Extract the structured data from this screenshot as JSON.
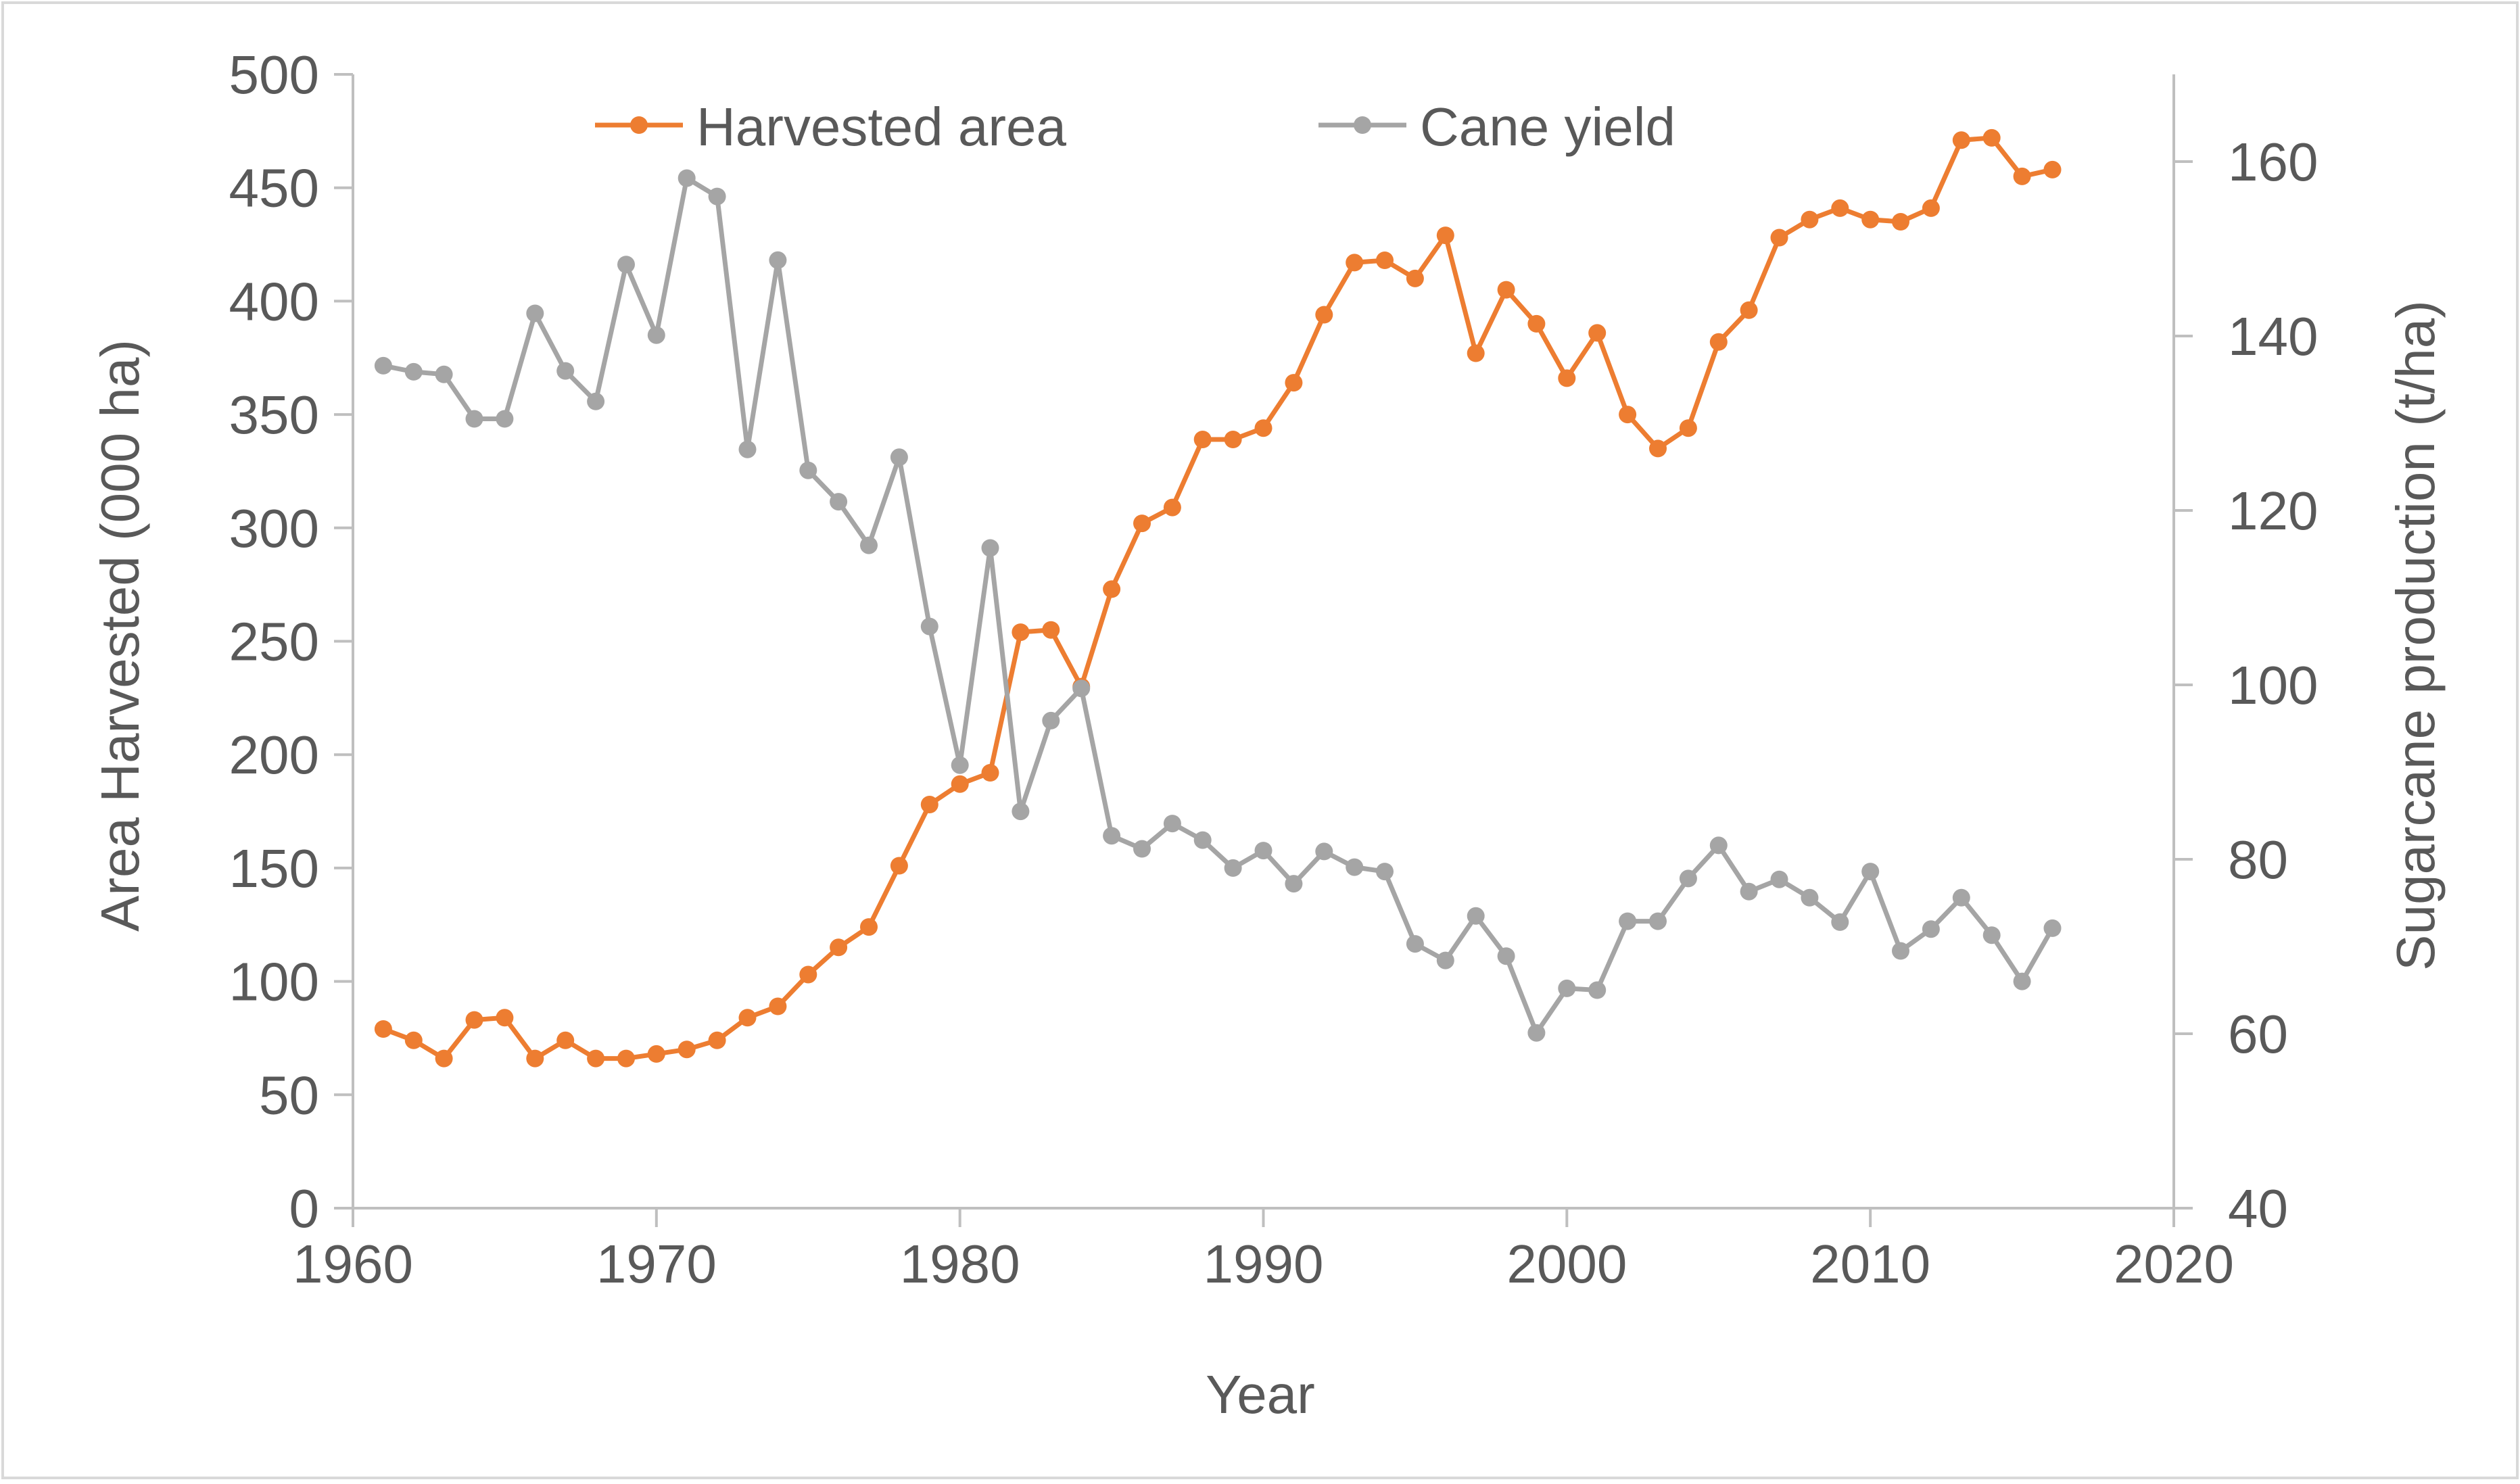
{
  "chart_data": {
    "type": "line",
    "title": "",
    "xlabel": "Year",
    "ylabel_left": "Area Harvested (000 ha)",
    "ylabel_right": "Sugarcane production (t/ha)",
    "xlim": [
      1960,
      2020
    ],
    "ylim_left": [
      0,
      500
    ],
    "ylim_right": [
      40,
      170
    ],
    "x_ticks": [
      1960,
      1970,
      1980,
      1990,
      2000,
      2010,
      2020
    ],
    "y_left_ticks": [
      0,
      50,
      100,
      150,
      200,
      250,
      300,
      350,
      400,
      450,
      500
    ],
    "y_right_ticks": [
      40,
      60,
      80,
      100,
      120,
      140,
      160
    ],
    "grid": false,
    "legend_position": "top-center",
    "x": [
      1961,
      1962,
      1963,
      1964,
      1965,
      1966,
      1967,
      1968,
      1969,
      1970,
      1971,
      1972,
      1973,
      1974,
      1975,
      1976,
      1977,
      1978,
      1979,
      1980,
      1981,
      1982,
      1983,
      1984,
      1985,
      1986,
      1987,
      1988,
      1989,
      1990,
      1991,
      1992,
      1993,
      1994,
      1995,
      1996,
      1997,
      1998,
      1999,
      2000,
      2001,
      2002,
      2003,
      2004,
      2005,
      2006,
      2007,
      2008,
      2009,
      2010,
      2011,
      2012,
      2013,
      2014,
      2015,
      2016
    ],
    "series": [
      {
        "name": "Harvested area",
        "axis": "left",
        "color": "#ED7D31",
        "values": [
          79,
          74,
          66,
          83,
          84,
          66,
          74,
          66,
          66,
          68,
          70,
          74,
          84,
          89,
          103,
          115,
          124,
          151,
          178,
          187,
          192,
          254,
          255,
          230,
          273,
          302,
          309,
          339,
          339,
          344,
          364,
          394,
          417,
          418,
          410,
          429,
          377,
          405,
          390,
          366,
          386,
          350,
          335,
          344,
          382,
          396,
          428,
          436,
          441,
          436,
          435,
          441,
          471,
          472,
          455,
          458
        ]
      },
      {
        "name": "Cane yield",
        "axis": "right",
        "color": "#A5A5A5",
        "values": [
          136.6,
          135.9,
          135.6,
          130.5,
          130.5,
          142.6,
          136.0,
          132.5,
          148.2,
          140.1,
          158.1,
          156.0,
          127.0,
          148.7,
          124.6,
          121.0,
          116.0,
          126.1,
          106.7,
          90.8,
          115.7,
          85.5,
          95.9,
          99.6,
          82.7,
          81.2,
          84.1,
          82.2,
          79.0,
          81.0,
          77.2,
          80.9,
          79.1,
          78.6,
          70.3,
          68.4,
          73.5,
          68.9,
          60.1,
          65.2,
          65.0,
          72.9,
          72.9,
          77.8,
          81.6,
          76.3,
          77.7,
          75.6,
          72.8,
          78.6,
          69.5,
          72.0,
          75.6,
          71.3,
          66.0,
          72.1
        ]
      }
    ]
  }
}
